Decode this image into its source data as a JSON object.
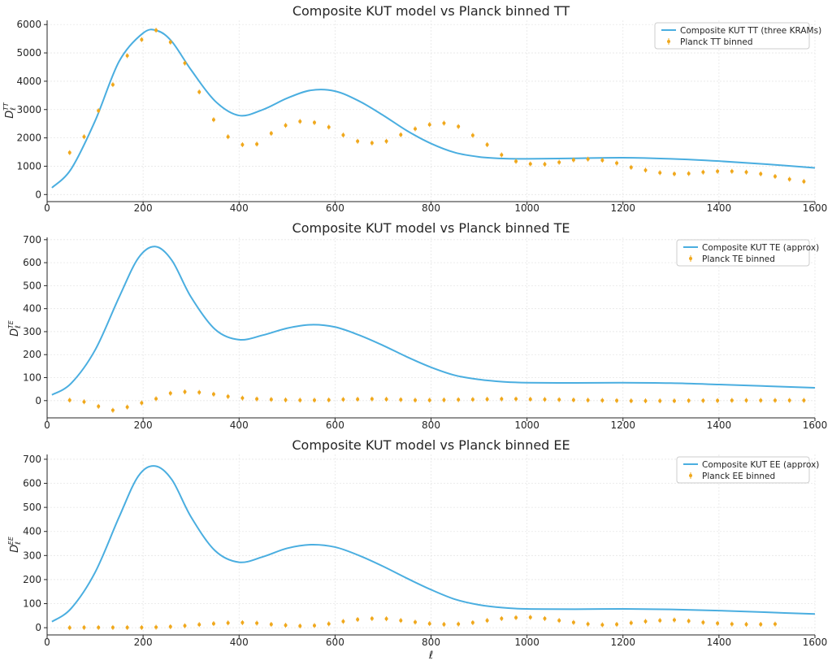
{
  "style": {
    "model_color": "#4aaee0",
    "data_color": "#f0a81c"
  },
  "chart_data": [
    {
      "type": "line",
      "title": "Composite KUT model vs Planck binned TT",
      "xlabel": "",
      "ylabel": "D_ℓ^{TT}",
      "ylabel_main": "D",
      "ylabel_sub": "ℓ",
      "ylabel_sup": "TT",
      "xlim": [
        0,
        1600
      ],
      "ylim": [
        -250,
        6150
      ],
      "xticks": [
        "0",
        "200",
        "400",
        "600",
        "800",
        "1000",
        "1200",
        "1400",
        "1600"
      ],
      "yticks": [
        "0",
        "1000",
        "2000",
        "3000",
        "4000",
        "5000",
        "6000"
      ],
      "legend_position": "top-right",
      "series": [
        {
          "name": "Composite KUT TT (three KRAMs)",
          "kind": "line",
          "x": [
            10,
            50,
            100,
            150,
            200,
            230,
            260,
            300,
            350,
            400,
            450,
            500,
            550,
            600,
            650,
            700,
            750,
            800,
            850,
            900,
            950,
            1000,
            1100,
            1200,
            1300,
            1400,
            1500,
            1600
          ],
          "y": [
            240,
            900,
            2600,
            4700,
            5700,
            5780,
            5400,
            4400,
            3300,
            2790,
            3000,
            3400,
            3680,
            3650,
            3300,
            2800,
            2250,
            1800,
            1480,
            1330,
            1270,
            1260,
            1280,
            1300,
            1260,
            1180,
            1070,
            940
          ]
        },
        {
          "name": "Planck TT binned",
          "kind": "errorbar",
          "x": [
            47,
            77,
            107,
            137,
            167,
            197,
            227,
            257,
            287,
            317,
            347,
            377,
            407,
            437,
            467,
            497,
            527,
            557,
            587,
            617,
            647,
            677,
            707,
            737,
            767,
            797,
            827,
            857,
            887,
            917,
            947,
            977,
            1007,
            1037,
            1067,
            1097,
            1127,
            1157,
            1187,
            1217,
            1247,
            1277,
            1307,
            1337,
            1367,
            1397,
            1427,
            1457,
            1487,
            1517,
            1547,
            1577
          ],
          "y": [
            1480,
            2040,
            2960,
            3880,
            4900,
            5470,
            5800,
            5380,
            4640,
            3620,
            2640,
            2040,
            1760,
            1780,
            2160,
            2440,
            2580,
            2540,
            2380,
            2100,
            1880,
            1820,
            1880,
            2110,
            2320,
            2470,
            2520,
            2400,
            2090,
            1760,
            1400,
            1170,
            1080,
            1070,
            1140,
            1220,
            1250,
            1210,
            1110,
            960,
            860,
            770,
            730,
            740,
            790,
            820,
            820,
            790,
            730,
            640,
            540,
            460
          ]
        }
      ]
    },
    {
      "type": "line",
      "title": "Composite KUT model vs Planck binned TE",
      "xlabel": "",
      "ylabel": "D_ℓ^{TE}",
      "ylabel_main": "D",
      "ylabel_sub": "ℓ",
      "ylabel_sup": "TE",
      "xlim": [
        0,
        1600
      ],
      "ylim": [
        -75,
        710
      ],
      "xticks": [
        "0",
        "200",
        "400",
        "600",
        "800",
        "1000",
        "1200",
        "1400",
        "1600"
      ],
      "yticks": [
        "0",
        "100",
        "200",
        "300",
        "400",
        "500",
        "600",
        "700"
      ],
      "legend_position": "top-right",
      "series": [
        {
          "name": "Composite KUT TE (approx)",
          "kind": "line",
          "x": [
            10,
            50,
            100,
            150,
            190,
            225,
            260,
            300,
            350,
            400,
            450,
            500,
            550,
            600,
            650,
            700,
            750,
            800,
            850,
            900,
            950,
            1000,
            1100,
            1200,
            1300,
            1400,
            1500,
            1600
          ],
          "y": [
            25,
            75,
            220,
            450,
            620,
            670,
            610,
            450,
            310,
            265,
            285,
            315,
            330,
            320,
            285,
            240,
            190,
            145,
            110,
            92,
            82,
            78,
            77,
            78,
            76,
            70,
            63,
            56
          ]
        },
        {
          "name": "Planck TE binned",
          "kind": "errorbar",
          "x": [
            47,
            77,
            107,
            137,
            167,
            197,
            227,
            257,
            287,
            317,
            347,
            377,
            407,
            437,
            467,
            497,
            527,
            557,
            587,
            617,
            647,
            677,
            707,
            737,
            767,
            797,
            827,
            857,
            887,
            917,
            947,
            977,
            1007,
            1037,
            1067,
            1097,
            1127,
            1157,
            1187,
            1217,
            1247,
            1277,
            1307,
            1337,
            1367,
            1397,
            1427,
            1457,
            1487,
            1517,
            1547,
            1577
          ],
          "y": [
            2,
            -5,
            -25,
            -42,
            -28,
            -10,
            8,
            32,
            38,
            36,
            28,
            18,
            11,
            7,
            5,
            3,
            2,
            2,
            3,
            5,
            6,
            7,
            6,
            4,
            2,
            2,
            3,
            4,
            5,
            6,
            7,
            7,
            6,
            5,
            4,
            3,
            2,
            1,
            0,
            -1,
            -1,
            -1,
            -1,
            0,
            0,
            0,
            1,
            1,
            1,
            1,
            1,
            1
          ]
        }
      ]
    },
    {
      "type": "line",
      "title": "Composite KUT model vs Planck binned EE",
      "xlabel": "ℓ",
      "ylabel": "D_ℓ^{EE}",
      "ylabel_main": "D",
      "ylabel_sub": "ℓ",
      "ylabel_sup": "EE",
      "xlim": [
        0,
        1600
      ],
      "ylim": [
        -30,
        720
      ],
      "xticks": [
        "0",
        "200",
        "400",
        "600",
        "800",
        "1000",
        "1200",
        "1400",
        "1600"
      ],
      "yticks": [
        "0",
        "100",
        "200",
        "300",
        "400",
        "500",
        "600",
        "700"
      ],
      "legend_position": "top-right",
      "series": [
        {
          "name": "Composite KUT EE (approx)",
          "kind": "line",
          "x": [
            10,
            50,
            100,
            150,
            190,
            225,
            260,
            300,
            350,
            400,
            450,
            500,
            550,
            600,
            650,
            700,
            750,
            800,
            850,
            900,
            950,
            1000,
            1100,
            1200,
            1300,
            1400,
            1500,
            1600
          ],
          "y": [
            25,
            80,
            230,
            460,
            630,
            672,
            615,
            460,
            320,
            272,
            295,
            330,
            345,
            335,
            300,
            255,
            205,
            158,
            118,
            95,
            83,
            78,
            77,
            78,
            76,
            71,
            64,
            57
          ]
        },
        {
          "name": "Planck EE binned",
          "kind": "errorbar",
          "x": [
            47,
            77,
            107,
            137,
            167,
            197,
            227,
            257,
            287,
            317,
            347,
            377,
            407,
            437,
            467,
            497,
            527,
            557,
            587,
            617,
            647,
            677,
            707,
            737,
            767,
            797,
            827,
            857,
            887,
            917,
            947,
            977,
            1007,
            1037,
            1067,
            1097,
            1127,
            1157,
            1187,
            1217,
            1247,
            1277,
            1307,
            1337,
            1367,
            1397,
            1427,
            1457,
            1487,
            1517
          ],
          "y": [
            0,
            1,
            1,
            1,
            1,
            1,
            2,
            4,
            8,
            13,
            17,
            20,
            21,
            19,
            14,
            10,
            7,
            9,
            16,
            26,
            34,
            38,
            37,
            30,
            23,
            17,
            14,
            15,
            21,
            30,
            38,
            42,
            43,
            38,
            30,
            22,
            15,
            12,
            14,
            20,
            26,
            30,
            32,
            28,
            22,
            18,
            15,
            14,
            14,
            15
          ]
        }
      ]
    }
  ]
}
